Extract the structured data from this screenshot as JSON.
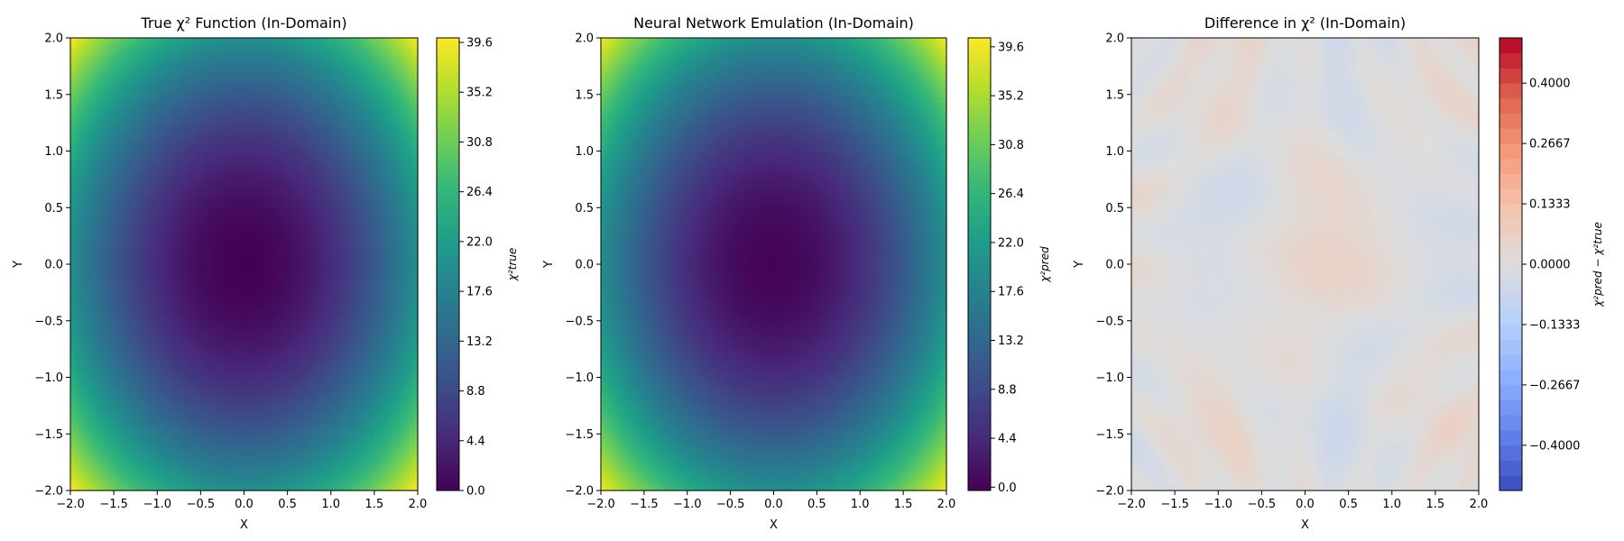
{
  "chart_data": [
    {
      "type": "heatmap",
      "title": "True χ² Function (In-Domain)",
      "xlabel": "X",
      "ylabel": "Y",
      "xlim": [
        -2.0,
        2.0
      ],
      "ylim": [
        -2.0,
        2.0
      ],
      "xticks": [
        "−2.0",
        "−1.5",
        "−1.0",
        "−0.5",
        "0.0",
        "0.5",
        "1.0",
        "1.5",
        "2.0"
      ],
      "yticks": [
        "−2.0",
        "−1.5",
        "−1.0",
        "−0.5",
        "0.0",
        "0.5",
        "1.0",
        "1.5",
        "2.0"
      ],
      "colormap": "viridis",
      "function": "chi2 = 5*x^2 + 5*y^2, minimum 0 at (0, 0)",
      "colorbar": {
        "label": "χ²true",
        "range": [
          0.0,
          40.0
        ],
        "ticks": [
          "0.0",
          "4.4",
          "8.8",
          "13.2",
          "17.6",
          "22.0",
          "26.4",
          "30.8",
          "35.2",
          "39.6"
        ]
      }
    },
    {
      "type": "heatmap",
      "title": "Neural Network Emulation (In-Domain)",
      "xlabel": "X",
      "ylabel": "Y",
      "xlim": [
        -2.0,
        2.0
      ],
      "ylim": [
        -2.0,
        2.0
      ],
      "xticks": [
        "−2.0",
        "−1.5",
        "−1.0",
        "−0.5",
        "0.0",
        "0.5",
        "1.0",
        "1.5",
        "2.0"
      ],
      "yticks": [
        "−2.0",
        "−1.5",
        "−1.0",
        "−0.5",
        "0.0",
        "0.5",
        "1.0",
        "1.5",
        "2.0"
      ],
      "colormap": "viridis",
      "function": "chi2 approx 5*x^2 + 5*y^2, minimum near 0 at (0, 0)",
      "colorbar": {
        "label": "χ²pred",
        "range": [
          -0.3,
          40.4
        ],
        "ticks": [
          "0.0",
          "4.4",
          "8.8",
          "13.2",
          "17.6",
          "22.0",
          "26.4",
          "30.8",
          "35.2",
          "39.6"
        ]
      }
    },
    {
      "type": "heatmap",
      "title": "Difference in χ² (In-Domain)",
      "xlabel": "X",
      "ylabel": "Y",
      "xlim": [
        -2.0,
        2.0
      ],
      "ylim": [
        -2.0,
        2.0
      ],
      "xticks": [
        "−2.0",
        "−1.5",
        "−1.0",
        "−0.5",
        "0.0",
        "0.5",
        "1.0",
        "1.5",
        "2.0"
      ],
      "yticks": [
        "−2.0",
        "−1.5",
        "−1.0",
        "−0.5",
        "0.0",
        "0.5",
        "1.0",
        "1.5",
        "2.0"
      ],
      "colormap": "coolwarm",
      "function": "chi2_pred - chi2_true, near-zero noise in roughly [-0.05, 0.05]",
      "colorbar": {
        "label": "χ²pred − χ²true",
        "range": [
          -0.5,
          0.5
        ],
        "levels": 30,
        "ticks": [
          "−0.4000",
          "−0.2667",
          "−0.1333",
          "0.0000",
          "0.1333",
          "0.2667",
          "0.4000"
        ]
      }
    }
  ]
}
